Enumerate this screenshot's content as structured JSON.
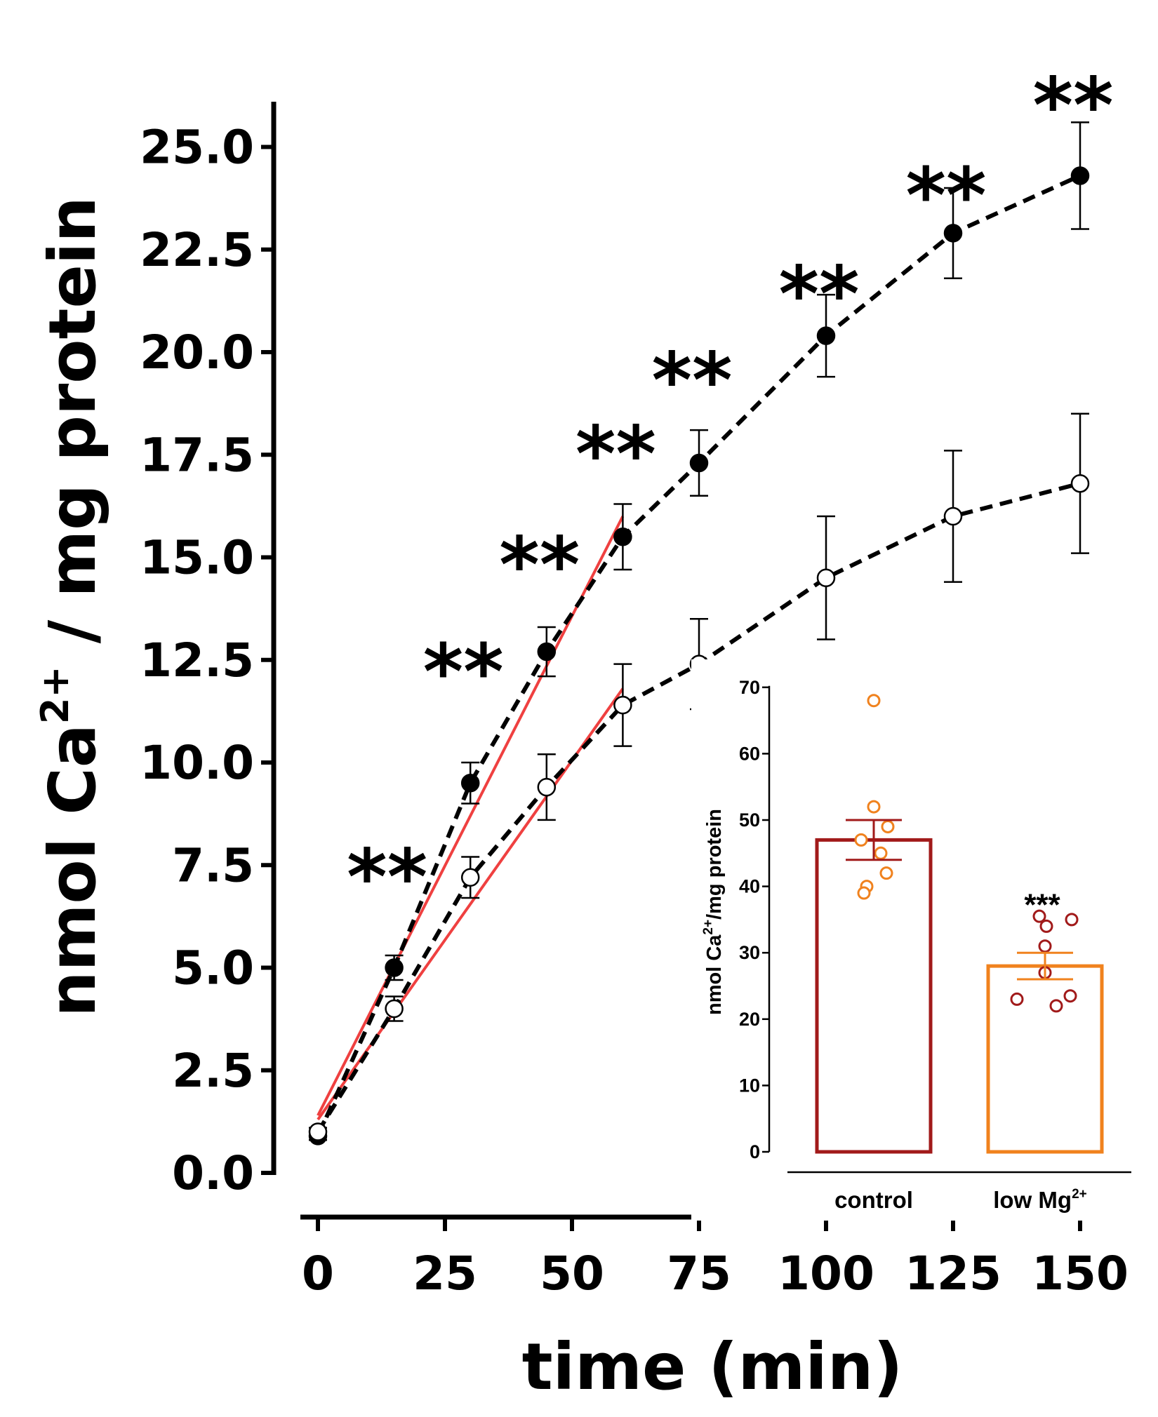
{
  "chart_data": [
    {
      "type": "line",
      "xlabel": "time (min)",
      "ylabel": {
        "prefix": "nmol Ca",
        "superscript": "2+",
        "suffix": " / mg protein"
      },
      "xlim": [
        0,
        150
      ],
      "ylim": [
        0,
        25
      ],
      "x_ticks": [
        0,
        25,
        50,
        75,
        100,
        125,
        150
      ],
      "x_tick_labels": [
        "0",
        "25",
        "50",
        "75",
        "100",
        "125",
        "150"
      ],
      "y_ticks": [
        0,
        2.5,
        5,
        7.5,
        10,
        12.5,
        15,
        17.5,
        20,
        22.5,
        25
      ],
      "y_tick_labels": [
        "0.0",
        "2.5",
        "5.0",
        "7.5",
        "10.0",
        "12.5",
        "15.0",
        "17.5",
        "20.0",
        "22.5",
        "25.0"
      ],
      "series": [
        {
          "name": "filled circles",
          "marker": "filled",
          "color": "#000000",
          "x": [
            0,
            15,
            30,
            45,
            60,
            75,
            100,
            125,
            150
          ],
          "values": [
            0.9,
            5.0,
            9.5,
            12.7,
            15.5,
            17.3,
            20.4,
            22.9,
            24.3
          ],
          "errors": [
            0.1,
            0.3,
            0.5,
            0.6,
            0.8,
            0.8,
            1.0,
            1.1,
            1.3
          ]
        },
        {
          "name": "open circles",
          "marker": "open",
          "color": "#000000",
          "x": [
            0,
            15,
            30,
            45,
            60,
            75,
            100,
            125,
            150
          ],
          "values": [
            1.0,
            4.0,
            7.2,
            9.4,
            11.4,
            12.4,
            14.5,
            16.0,
            16.8
          ],
          "errors": [
            0.1,
            0.3,
            0.5,
            0.8,
            1.0,
            1.1,
            1.5,
            1.6,
            1.7
          ]
        }
      ],
      "fit_lines": [
        {
          "color": "#ef4040",
          "x": [
            0,
            60
          ],
          "y": [
            1.4,
            16.0
          ]
        },
        {
          "color": "#ef4040",
          "x": [
            0,
            60
          ],
          "y": [
            1.3,
            11.8
          ]
        }
      ],
      "annotations": [
        {
          "text": "**",
          "x": 15,
          "y": 7.5
        },
        {
          "text": "**",
          "x": 30,
          "y": 12.5
        },
        {
          "text": "**",
          "x": 45,
          "y": 15.1
        },
        {
          "text": "**",
          "x": 60,
          "y": 17.8
        },
        {
          "text": "**",
          "x": 75,
          "y": 19.6
        },
        {
          "text": "**",
          "x": 100,
          "y": 21.7
        },
        {
          "text": "**",
          "x": 125,
          "y": 24.1
        },
        {
          "text": "**",
          "x": 150,
          "y": 26.3
        }
      ]
    },
    {
      "type": "bar",
      "categories": [
        "control",
        "low Mg"
      ],
      "category_superscripts": [
        "",
        "2+"
      ],
      "values": [
        47,
        28
      ],
      "errors": [
        3,
        2
      ],
      "bar_colors": [
        "#a11a1a",
        "#f0821e"
      ],
      "point_colors": [
        "#f0821e",
        "#a11a1a"
      ],
      "points": [
        [
          68,
          52,
          49,
          47,
          45,
          42,
          40,
          39
        ],
        [
          35.5,
          35,
          34,
          31,
          27,
          23.5,
          23,
          22
        ]
      ],
      "ylabel": {
        "prefix": "nmol Ca",
        "superscript": "2+",
        "suffix": "/mg protein"
      },
      "ylim": [
        0,
        70
      ],
      "y_ticks": [
        0,
        10,
        20,
        30,
        40,
        50,
        60,
        70
      ],
      "y_tick_labels": [
        "0",
        "10",
        "20",
        "30",
        "40",
        "50",
        "60",
        "70"
      ],
      "annotations": [
        {
          "text": "***",
          "category": "low Mg",
          "y": 38
        }
      ]
    }
  ]
}
